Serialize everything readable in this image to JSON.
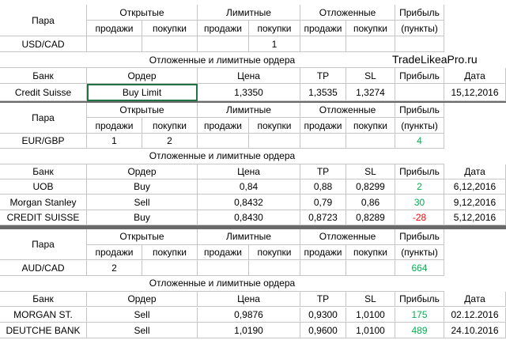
{
  "watermark": "TradeLikeaPro.ru",
  "profit_colors": {
    "positive": "#00b050",
    "negative": "#ff0000"
  },
  "blocks": [
    {
      "pair_header": [
        "Пара",
        "Открытые",
        "Лимитные",
        "Отложенные",
        "Прибыль"
      ],
      "pair_subheader": [
        "продажи",
        "покупки",
        "продажи",
        "покупки",
        "продажи",
        "покупки",
        "(пункты)"
      ],
      "pair_row": [
        "USD/CAD",
        null,
        null,
        null,
        "1",
        null,
        null,
        null
      ],
      "orders_title": "Отложенные и лимитные ордера",
      "orders_header": [
        "Банк",
        "Ордер",
        "Цена",
        "TP",
        "SL",
        "Прибыль",
        "Дата"
      ],
      "orders": [
        [
          "Credit Suisse",
          "Buy Limit",
          "1,3350",
          "1,3535",
          "1,3274",
          null,
          "15,12,2016"
        ]
      ]
    },
    {
      "pair_header": [
        "Пара",
        "Открытые",
        "Лимитные",
        "Отложенные",
        "Прибыль"
      ],
      "pair_subheader": [
        "продажи",
        "покупки",
        "продажи",
        "покупки",
        "продажи",
        "покупки",
        "(пункты)"
      ],
      "pair_row": [
        "EUR/GBP",
        "1",
        "2",
        null,
        null,
        null,
        null,
        "4"
      ],
      "orders_title": "Отложенные и лимитные ордера",
      "orders_header": [
        "Банк",
        "Ордер",
        "Цена",
        "TP",
        "SL",
        "Прибыль",
        "Дата"
      ],
      "orders": [
        [
          "UOB",
          "Buy",
          "0,84",
          "0,88",
          "0,8299",
          "2",
          "6,12,2016"
        ],
        [
          "Morgan Stanley",
          "Sell",
          "0,8432",
          "0,79",
          "0,86",
          "30",
          "9,12,2016"
        ],
        [
          "CREDIT SUISSE",
          "Buy",
          "0,8430",
          "0,8723",
          "0,8289",
          "-28",
          "5,12,2016"
        ]
      ]
    },
    {
      "pair_header": [
        "Пара",
        "Открытые",
        "Лимитные",
        "Отложенные",
        "Прибыль"
      ],
      "pair_subheader": [
        "продажи",
        "покупки",
        "продажи",
        "покупки",
        "продажи",
        "покупки",
        "(пункты)"
      ],
      "pair_row": [
        "AUD/CAD",
        "2",
        null,
        null,
        null,
        null,
        null,
        "664"
      ],
      "orders_title": "Отложенные и лимитные ордера",
      "orders_header": [
        "Банк",
        "Ордер",
        "Цена",
        "TP",
        "SL",
        "Прибыль",
        "Дата"
      ],
      "orders": [
        [
          "MORGAN ST.",
          "Sell",
          "0,9876",
          "0,9300",
          "1,0100",
          "175",
          "02.12.2016"
        ],
        [
          "DEUTCHE BANK",
          "Sell",
          "1,0190",
          "0,9600",
          "1,0100",
          "489",
          "24.10.2016"
        ]
      ]
    }
  ]
}
